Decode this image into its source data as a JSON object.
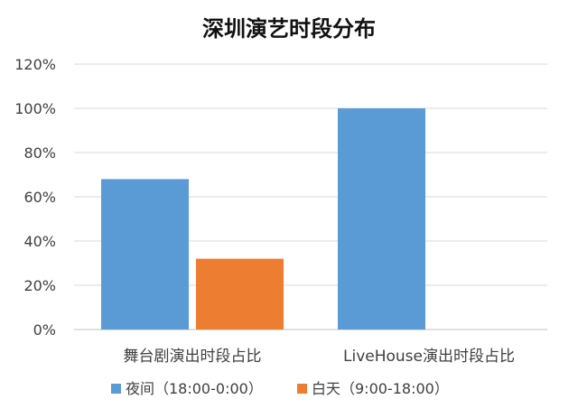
{
  "chart_data": {
    "type": "bar",
    "title": "深圳演艺时段分布",
    "categories": [
      "舞台剧演出时段占比",
      "LiveHouse演出时段占比"
    ],
    "series": [
      {
        "name": "夜间（18:00-0:00）",
        "color": "#5B9BD5",
        "values": [
          68,
          100
        ]
      },
      {
        "name": "白天（9:00-18:00）",
        "color": "#ED7D31",
        "values": [
          32,
          0
        ]
      }
    ],
    "yticks": [
      "0%",
      "20%",
      "40%",
      "60%",
      "80%",
      "100%",
      "120%"
    ],
    "ylim": [
      0,
      120
    ],
    "grid": true,
    "legend_position": "bottom"
  }
}
